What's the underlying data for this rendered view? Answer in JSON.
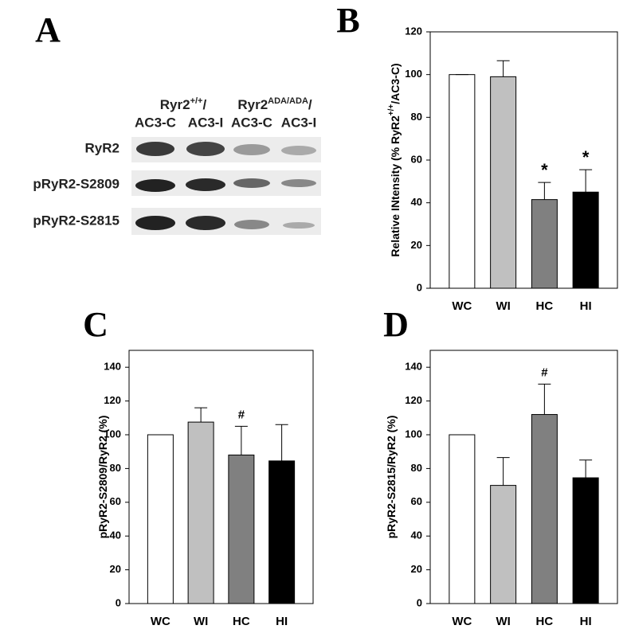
{
  "panel_a": {
    "label": "A",
    "groups": [
      {
        "name": "Ryr2",
        "sup": "+/+",
        "end": "/"
      },
      {
        "name": "Ryr2",
        "sup": "ADA/ADA",
        "end": "/"
      }
    ],
    "columns": [
      "AC3-C",
      "AC3-I",
      "AC3-C",
      "AC3-I"
    ],
    "rows": [
      "RyR2",
      "pRyR2-S2809",
      "pRyR2-S2815"
    ]
  },
  "chart_data": [
    {
      "type": "bar",
      "panel": "B",
      "ylabel": {
        "text": "Relative INtensity (% RyR2",
        "sup": "+/+",
        "end": "/AC3-C)"
      },
      "categories": [
        "WC",
        "WI",
        "HC",
        "HI"
      ],
      "values": [
        100,
        99,
        41.5,
        45
      ],
      "errors": [
        0,
        7.5,
        8,
        10.5
      ],
      "colors": [
        "#ffffff",
        "#c0c0c0",
        "#808080",
        "#000000"
      ],
      "ylim": [
        0,
        120
      ],
      "yticks": [
        0,
        20,
        40,
        60,
        80,
        100,
        120
      ],
      "annotations": [
        {
          "label": "*",
          "category": "HC"
        },
        {
          "label": "*",
          "category": "HI"
        }
      ]
    },
    {
      "type": "bar",
      "panel": "C",
      "ylabel": {
        "text": "pRyR2-S2809/RyR2 (%)"
      },
      "categories": [
        "WC",
        "WI",
        "HC",
        "HI"
      ],
      "values": [
        100,
        107.5,
        88,
        84.5
      ],
      "errors": [
        0,
        8.5,
        17,
        21.5
      ],
      "colors": [
        "#ffffff",
        "#c0c0c0",
        "#808080",
        "#000000"
      ],
      "ylim": [
        0,
        150
      ],
      "yticks": [
        0,
        20,
        40,
        60,
        80,
        100,
        120,
        140
      ],
      "annotations": [
        {
          "label": "#",
          "category": "HC"
        }
      ]
    },
    {
      "type": "bar",
      "panel": "D",
      "ylabel": {
        "text": "pRyR2-S2815/RyR2 (%)"
      },
      "categories": [
        "WC",
        "WI",
        "HC",
        "HI"
      ],
      "values": [
        100,
        70,
        112,
        74.5
      ],
      "errors": [
        0,
        16.5,
        18,
        10.5
      ],
      "colors": [
        "#ffffff",
        "#c0c0c0",
        "#808080",
        "#000000"
      ],
      "ylim": [
        0,
        150
      ],
      "yticks": [
        0,
        20,
        40,
        60,
        80,
        100,
        120,
        140
      ],
      "annotations": [
        {
          "label": "#",
          "category": "HC"
        }
      ]
    }
  ]
}
